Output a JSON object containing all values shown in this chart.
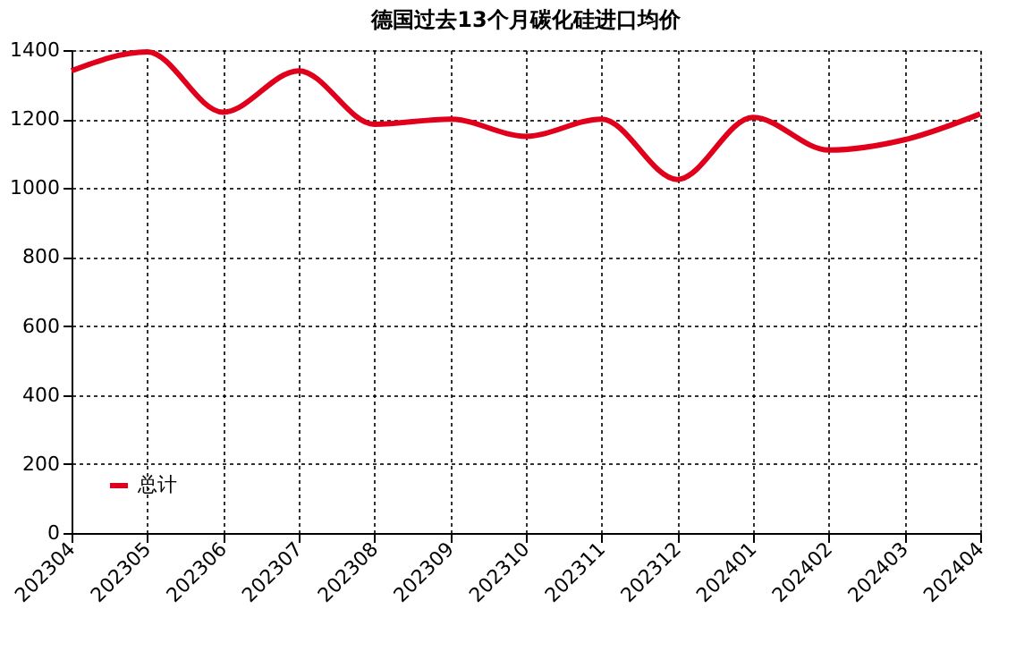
{
  "chart_data": {
    "type": "line",
    "title": "德国过去13个月碳化硅进口均价",
    "categories": [
      "202304",
      "202305",
      "202306",
      "202307",
      "202308",
      "202309",
      "202310",
      "202311",
      "202312",
      "202401",
      "202402",
      "202403",
      "202404"
    ],
    "series": [
      {
        "name": "总计",
        "color": "#e0001b",
        "values": [
          1340,
          1395,
          1220,
          1340,
          1185,
          1200,
          1150,
          1200,
          1025,
          1205,
          1110,
          1140,
          1215
        ]
      }
    ],
    "ylim": [
      0,
      1400
    ],
    "yticks": [
      0,
      200,
      400,
      600,
      800,
      1000,
      1200,
      1400
    ],
    "grid": true,
    "legend": "bottom left",
    "line_style": "solid",
    "marker": "none"
  }
}
